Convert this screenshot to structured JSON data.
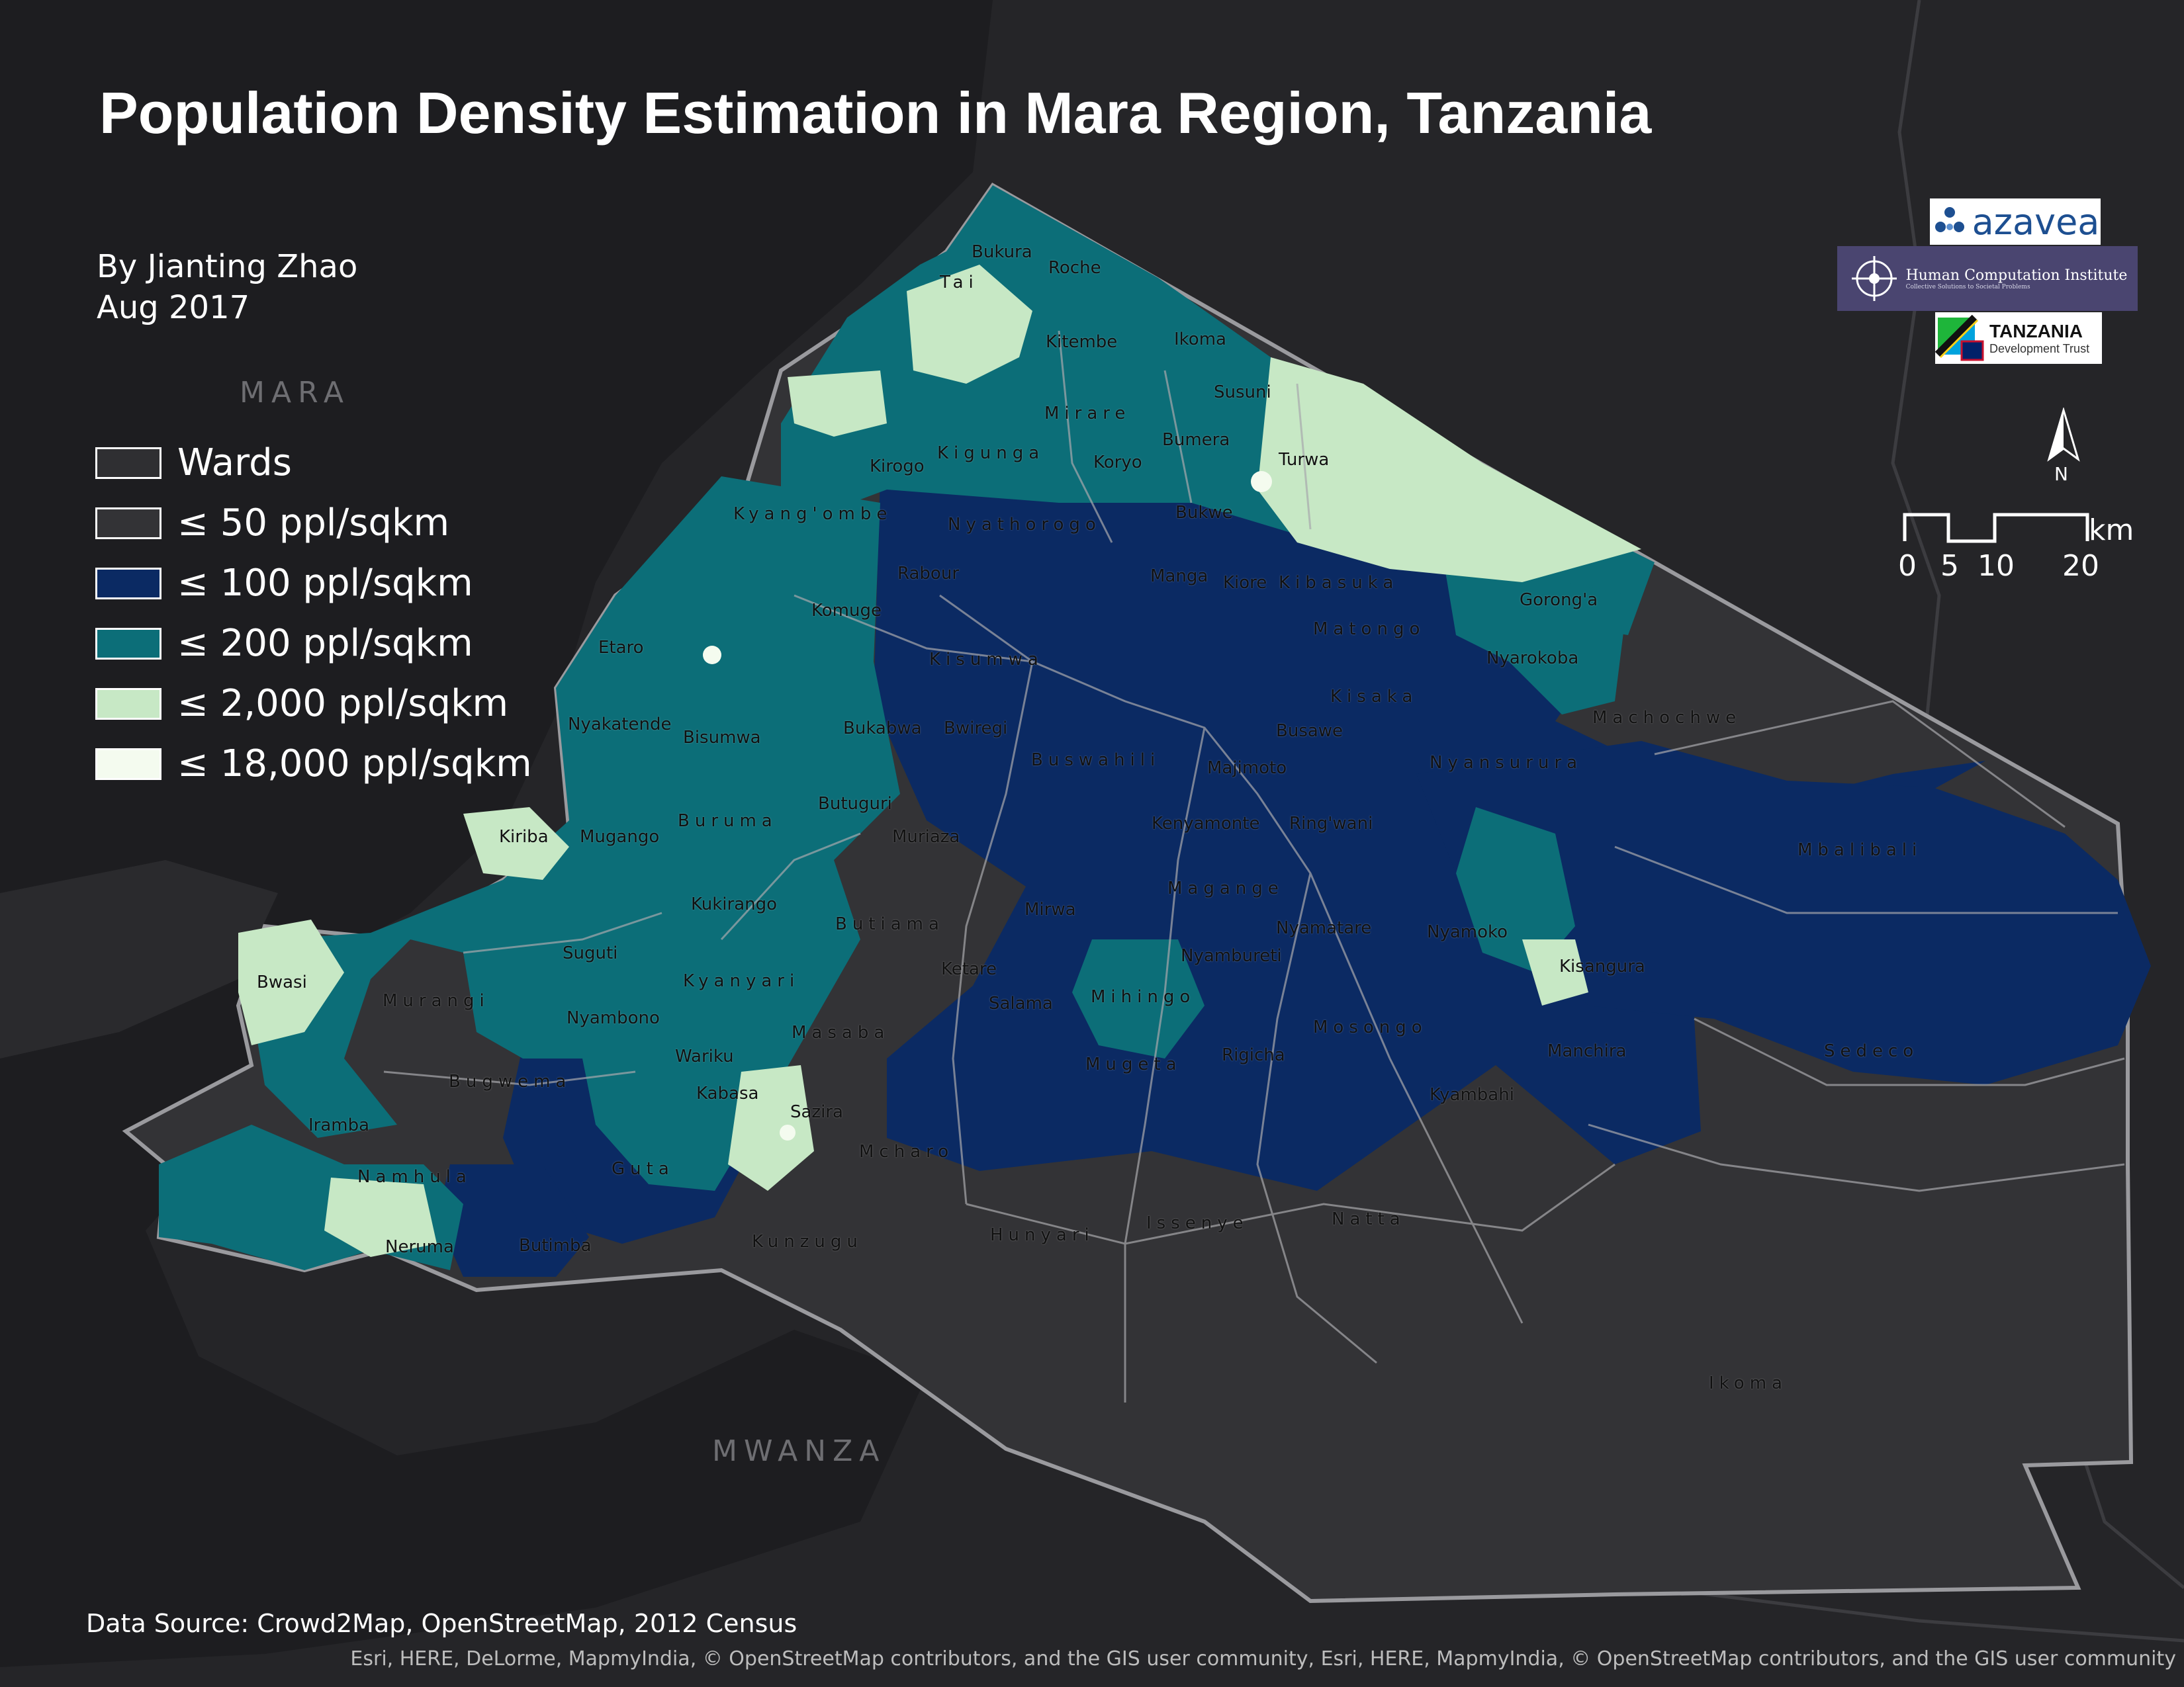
{
  "title": "Population Density Estimation in Mara Region, Tanzania",
  "author": "By Jianting Zhao",
  "date": "Aug 2017",
  "legend": [
    {
      "label": "Wards",
      "color": "#2f2f32"
    },
    {
      "label": "≤ 50 ppl/sqkm",
      "color": "#333336"
    },
    {
      "label": "≤ 100 ppl/sqkm",
      "color": "#0b2a63"
    },
    {
      "label": "≤ 200 ppl/sqkm",
      "color": "#0c6e78"
    },
    {
      "label": "≤ 2,000 ppl/sqkm",
      "color": "#c7e8c5"
    },
    {
      "label": "≤ 18,000 ppl/sqkm",
      "color": "#f4fbef"
    }
  ],
  "basemap_labels": {
    "region_mara": "MARA",
    "region_mwanza": "MWANZA"
  },
  "wards": [
    "Bukura",
    "Roche",
    "Tai",
    "Kitembe",
    "Ikoma",
    "Susuni",
    "Mirare",
    "Kirogo",
    "Kigunga",
    "Koryo",
    "Bumera",
    "Turwa",
    "Kyang'ombe",
    "Nyathorogo",
    "Bukwe",
    "Rabour",
    "Manga",
    "Kiore",
    "Kibasuka",
    "Gorong'a",
    "Komuge",
    "Matongo",
    "Etaro",
    "Kisumwa",
    "Nyarokoba",
    "Kisaka",
    "Nyakatende",
    "Bisumwa",
    "Bukabwa",
    "Bwiregi",
    "Busawe",
    "Machochwe",
    "Buswahili",
    "Majimoto",
    "Nyansurura",
    "Butuguri",
    "Buruma",
    "Kenyamonte",
    "Ring'wani",
    "Kiriba",
    "Mugango",
    "Muriaza",
    "Mbalibali",
    "Magange",
    "Kukirango",
    "Butiama",
    "Mirwa",
    "Nyamatare",
    "Nyamoko",
    "Suguti",
    "Nyambureti",
    "Kisangura",
    "Ketare",
    "Bwasi",
    "Kyanyari",
    "Murangi",
    "Salama",
    "Mihingo",
    "Nyambono",
    "Masaba",
    "Mosongo",
    "Sedeco",
    "Wariku",
    "Manchira",
    "Rigicha",
    "Mugeta",
    "Bugwema",
    "Kabasa",
    "Kyambahi",
    "Sazira",
    "Iramba",
    "Mcharo",
    "Guta",
    "Namhula",
    "Hunyari",
    "Issenye",
    "Natta",
    "Neruma",
    "Butimba",
    "Kunzugu",
    "Ikoma"
  ],
  "scale_bar": {
    "unit": "km",
    "ticks": [
      "0",
      "5",
      "10",
      "20"
    ]
  },
  "north_arrow": "N",
  "logos": {
    "azavea": "azavea",
    "hci": "Human Computation Institute",
    "hci_tagline": "Collective Solutions to Societal Problems",
    "tdt_main": "TANZANIA",
    "tdt_sub": "Development Trust"
  },
  "data_source": "Data Source: Crowd2Map, OpenStreetMap, 2012 Census",
  "credits": "Esri, HERE, DeLorme, MapmyIndia, © OpenStreetMap contributors, and the GIS user community, Esri, HERE, MapmyIndia, © OpenStreetMap contributors, and the GIS user community"
}
